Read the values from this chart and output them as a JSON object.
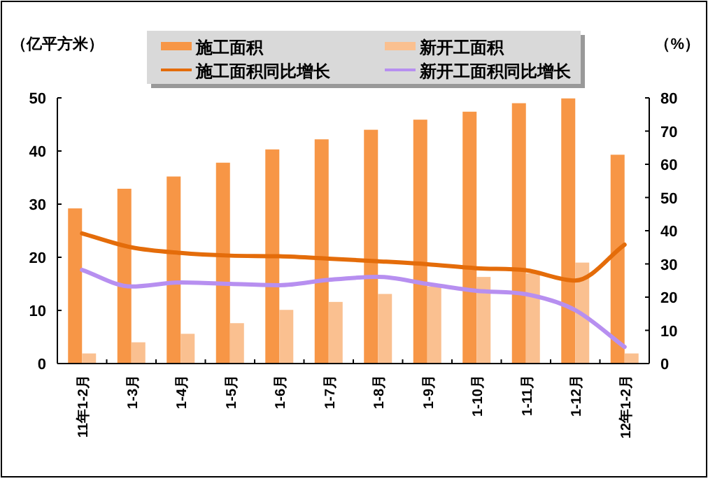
{
  "chart_data": {
    "type": "bar",
    "ylabel": "（亿平方米）",
    "y2label": "（%）",
    "categories": [
      "11年1-2月",
      "1-3月",
      "1-4月",
      "1-5月",
      "1-6月",
      "1-7月",
      "1-8月",
      "1-9月",
      "1-10月",
      "1-11月",
      "1-12月",
      "12年1-2月"
    ],
    "series": [
      {
        "name": "施工面积",
        "color": "#f79646",
        "values": [
          29.2,
          32.9,
          35.2,
          37.8,
          40.3,
          42.2,
          44.0,
          45.9,
          47.4,
          49.0,
          49.9,
          39.3
        ]
      },
      {
        "name": "新开工面积",
        "color": "#fac090",
        "values": [
          1.9,
          4.0,
          5.6,
          7.6,
          10.1,
          11.6,
          13.1,
          14.5,
          16.3,
          17.0,
          19.0,
          1.9
        ]
      },
      {
        "name": "施工面积同比增长",
        "type": "line",
        "axis": "y2",
        "color": "#e46c0a",
        "values": [
          39.2,
          35.0,
          33.3,
          32.5,
          32.3,
          31.6,
          30.8,
          29.9,
          28.7,
          28.1,
          25.0,
          35.8
        ]
      },
      {
        "name": "新开工面积同比增长",
        "type": "line",
        "axis": "y2",
        "color": "#b78ff0",
        "values": [
          28.2,
          23.2,
          24.4,
          24.0,
          23.6,
          25.2,
          26.1,
          24.0,
          21.9,
          20.9,
          16.1,
          5.0
        ]
      }
    ],
    "ylim": [
      0,
      50
    ],
    "yticks": [
      0,
      10,
      20,
      30,
      40,
      50
    ],
    "y2lim": [
      0,
      80
    ],
    "y2ticks": [
      0,
      10,
      20,
      30,
      40,
      50,
      60,
      70,
      80
    ],
    "legend": "top",
    "grid": false
  }
}
